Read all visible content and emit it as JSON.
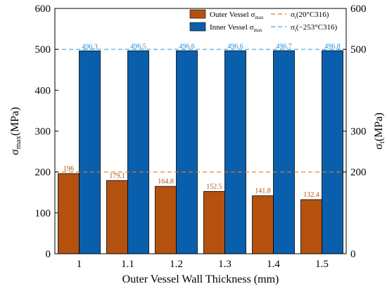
{
  "chart_data": {
    "type": "bar",
    "title": "",
    "xlabel": "Outer Vessel Wall Thickness (mm)",
    "ylabel_left": {
      "main": "σ",
      "sub": "max",
      "unit": "(MPa)"
    },
    "ylabel_right": {
      "main": "σ",
      "sub": "t",
      "unit": "(MPa)"
    },
    "categories": [
      "1",
      "1.1",
      "1.2",
      "1.3",
      "1.4",
      "1.5"
    ],
    "series": [
      {
        "name": "Outer Vessel σmax",
        "name_main": "Outer Vessel σ",
        "name_sub": "max",
        "color": "#b5510f",
        "values": [
          196,
          179.1,
          164.8,
          152.5,
          141.8,
          132.4
        ],
        "labels": [
          "196",
          "179.1",
          "164.8",
          "152.5",
          "141.8",
          "132.4"
        ],
        "label_color": "#b5510f"
      },
      {
        "name": "Inner Vessel σmax",
        "name_main": "Inner Vessel σ",
        "name_sub": "max",
        "color": "#0a5fad",
        "values": [
          496.3,
          496.5,
          496.6,
          496.6,
          496.7,
          496.8
        ],
        "labels": [
          "496.3",
          "496.5",
          "496.6",
          "496.6",
          "496.7",
          "496.8"
        ],
        "label_color": "#2a8fd6"
      }
    ],
    "reference_lines": [
      {
        "name": "σt(20°C316)",
        "name_main": "σ",
        "name_sub": "t",
        "name_rest": "(20°C316)",
        "value": 200,
        "color": "#e07b2a",
        "style": "dashed"
      },
      {
        "name": "σt(−253°C316)",
        "name_main": "σ",
        "name_sub": "t",
        "name_rest": "(−253°C316)",
        "value": 500,
        "color": "#39a9e0",
        "style": "dashed"
      }
    ],
    "ylim": [
      0,
      600
    ],
    "yticks_left": [
      "0",
      "100",
      "200",
      "300",
      "400",
      "500",
      "600"
    ],
    "yticks_left_values": [
      0,
      100,
      200,
      300,
      400,
      500,
      600
    ],
    "yticks_right": [
      "0",
      "200",
      "300",
      "500",
      "600"
    ],
    "yticks_right_values": [
      0,
      200,
      300,
      500,
      600
    ],
    "grid": false,
    "legend_position": "top-right"
  }
}
